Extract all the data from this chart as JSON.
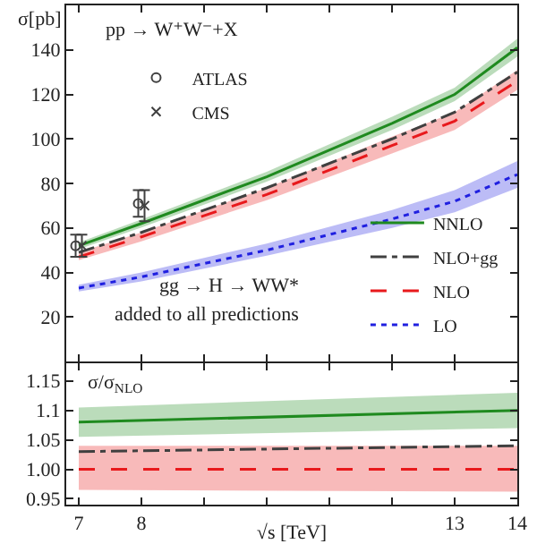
{
  "chart_data": [
    {
      "type": "line",
      "ylabel": "σ[pb]",
      "x": [
        7,
        8,
        10,
        12,
        13,
        14
      ],
      "xlim": [
        6.8,
        14
      ],
      "xticks": [
        7,
        8,
        {
          "value": 9,
          "label": null
        },
        {
          "value": 10,
          "label": null
        },
        {
          "value": 11,
          "label": null
        },
        {
          "value": 12,
          "label": null
        },
        13,
        14
      ],
      "ylim": [
        0,
        160
      ],
      "yticks": [
        20,
        40,
        60,
        80,
        100,
        120,
        140
      ],
      "tick_labels": "y",
      "legend": "bottom right",
      "grid": false,
      "annotations": [
        "pp → W⁺W⁻+X",
        "gg → H → WW*",
        "added to all predictions"
      ],
      "series": [
        {
          "name": "NNLO",
          "color": "#1f8a1f",
          "line_style": "solid",
          "values": [
            52,
            62,
            83,
            107,
            120,
            141
          ],
          "lower": [
            50.5,
            60.2,
            80.8,
            104,
            117,
            137
          ],
          "upper": [
            53.5,
            63.8,
            85.2,
            110,
            123,
            145
          ]
        },
        {
          "name": "NLO+gg",
          "color": "#404040",
          "line_style": "dashdot",
          "values": [
            49,
            58,
            78,
            100,
            112,
            130
          ]
        },
        {
          "name": "NLO",
          "color": "#e8191c",
          "line_style": "dashed",
          "values": [
            47,
            56,
            75,
            97,
            108,
            126
          ],
          "lower": [
            45.5,
            54,
            72.5,
            93.5,
            104,
            122
          ],
          "upper": [
            49,
            58,
            78,
            101,
            112,
            131
          ]
        },
        {
          "name": "LO",
          "color": "#2020e0",
          "line_style": "dotted",
          "values": [
            33,
            38,
            50,
            64,
            72,
            84
          ],
          "lower": [
            31.5,
            36,
            47.5,
            60,
            67,
            78
          ],
          "upper": [
            34.5,
            40,
            53,
            68,
            77,
            90
          ]
        },
        {
          "name": "ATLAS",
          "type": "scatter",
          "marker": "circle",
          "color": "#404040",
          "x": [
            6.95,
            7.95
          ],
          "values": [
            52,
            71
          ],
          "errors": [
            5,
            6
          ]
        },
        {
          "name": "CMS",
          "type": "scatter",
          "marker": "cross",
          "color": "#404040",
          "x": [
            7.05,
            8.05
          ],
          "values": [
            52,
            70
          ],
          "errors": [
            5,
            7
          ]
        }
      ]
    },
    {
      "type": "line",
      "ylabel": "σ/σ$_{NLO}$",
      "xlabel": "√s [TeV]",
      "x": [
        7,
        14
      ],
      "xlim": [
        6.8,
        14
      ],
      "xticks": [
        7,
        8,
        {
          "value": 9,
          "label": null
        },
        {
          "value": 10,
          "label": null
        },
        {
          "value": 11,
          "label": null
        },
        {
          "value": 12,
          "label": null
        },
        13,
        14
      ],
      "ylim": [
        0.94,
        1.18
      ],
      "yticks": [
        {
          "value": 0.95,
          "label": "0.95"
        },
        {
          "value": 1,
          "label": "1.00"
        },
        {
          "value": 1.05,
          "label": "1.05"
        },
        {
          "value": 1.1,
          "label": "1.1"
        },
        {
          "value": 1.15,
          "label": "1.15"
        }
      ],
      "grid": false,
      "legend": false,
      "series": [
        {
          "color": "#1f8a1f",
          "line_style": "solid",
          "values": [
            1.08,
            1.1
          ],
          "lower": [
            1.055,
            1.07
          ],
          "upper": [
            1.105,
            1.13
          ]
        },
        {
          "color": "#404040",
          "line_style": "dashdot",
          "values": [
            1.03,
            1.04
          ]
        },
        {
          "color": "#e8191c",
          "line_style": "dashed",
          "values": [
            1,
            1
          ],
          "lower": [
            0.965,
            0.962
          ],
          "upper": [
            1.04,
            1.04
          ]
        }
      ]
    }
  ]
}
